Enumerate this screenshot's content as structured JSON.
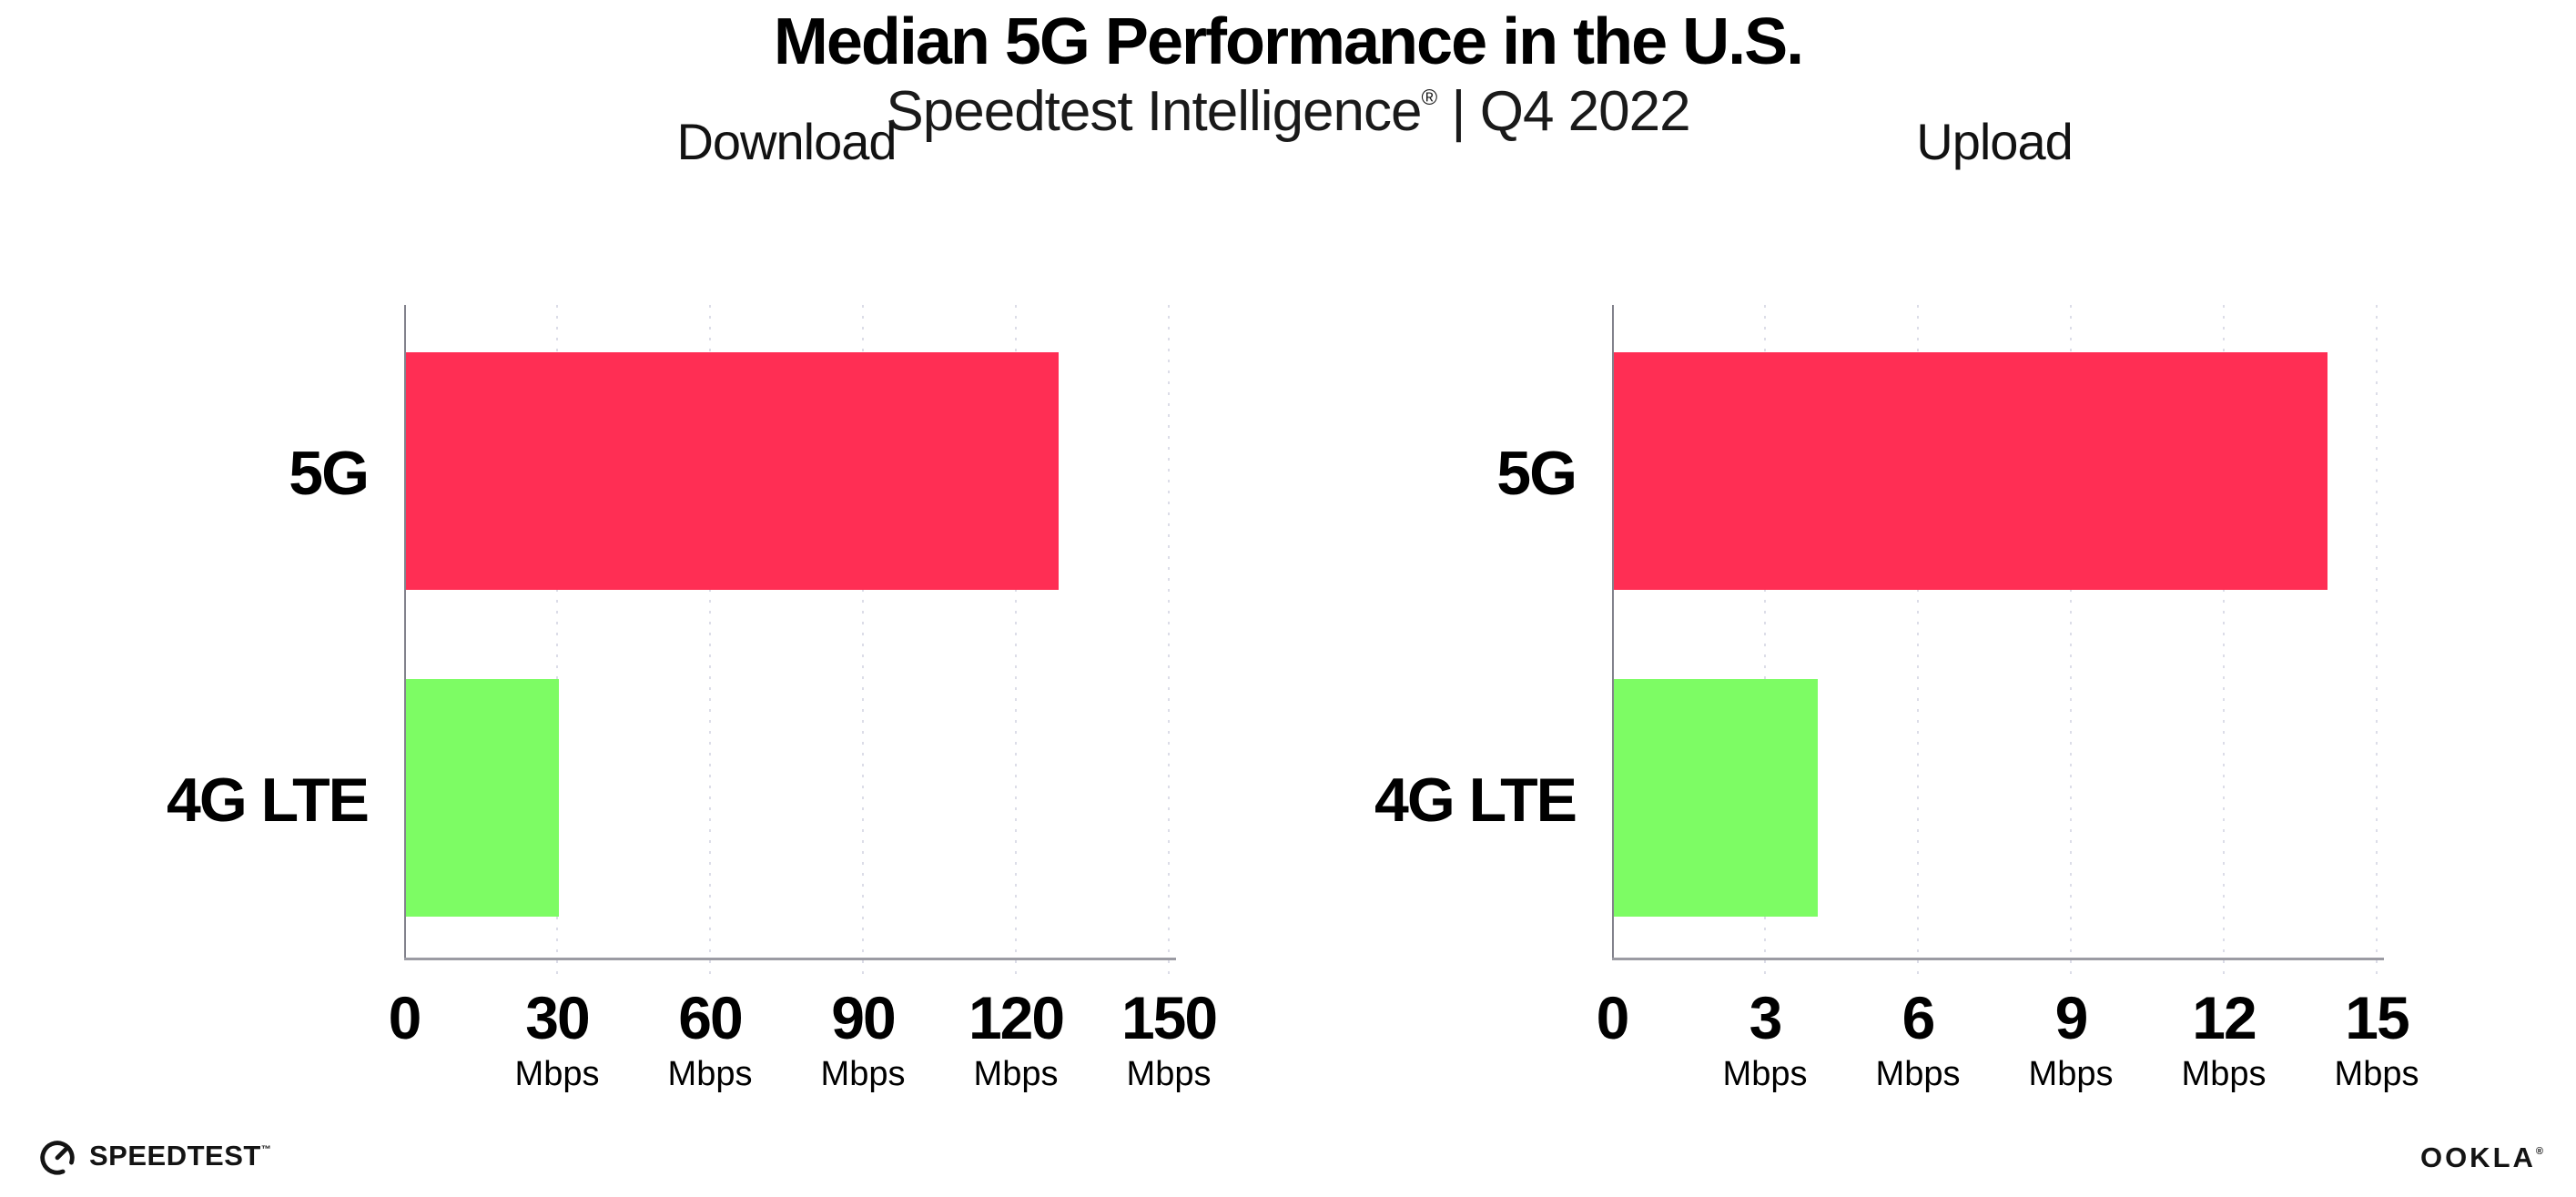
{
  "header": {
    "title": "Median 5G Performance in the U.S.",
    "subtitle_brand": "Speedtest Intelligence",
    "subtitle_reg": "®",
    "subtitle_rest": " | Q4 2022"
  },
  "colors": {
    "bar_5g": "#ff2e54",
    "bar_4g_lte": "#7dfc64",
    "y_axis": "#82828c",
    "x_axis": "#9b9ba3",
    "gridline": "#dcdde8",
    "text": "#000000"
  },
  "chart_data": [
    {
      "type": "bar",
      "orientation": "horizontal",
      "title": "Download",
      "categories": [
        "5G",
        "4G LTE"
      ],
      "values": [
        128,
        30
      ],
      "unit": "Mbps",
      "xlim": [
        0,
        150
      ],
      "xticks": [
        0,
        30,
        60,
        90,
        120,
        150
      ],
      "grid": "dotted-vertical",
      "bar_colors": [
        "#ff2e54",
        "#7dfc64"
      ],
      "legend": "none"
    },
    {
      "type": "bar",
      "orientation": "horizontal",
      "title": "Upload",
      "categories": [
        "5G",
        "4G LTE"
      ],
      "values": [
        14,
        4
      ],
      "unit": "Mbps",
      "xlim": [
        0,
        15
      ],
      "xticks": [
        0,
        3,
        6,
        9,
        12,
        15
      ],
      "grid": "dotted-vertical",
      "bar_colors": [
        "#ff2e54",
        "#7dfc64"
      ],
      "legend": "none"
    }
  ],
  "footer": {
    "speedtest_label": "SPEEDTEST",
    "speedtest_tm": "™",
    "ookla_label": "OOKLA",
    "ookla_reg": "®"
  }
}
